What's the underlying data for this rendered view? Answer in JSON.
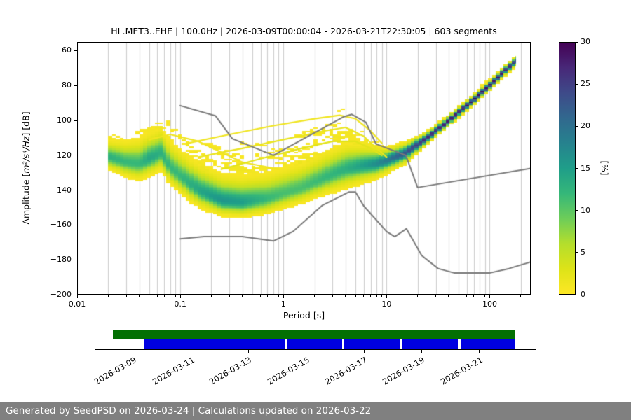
{
  "chart_data": {
    "type": "heatmap",
    "title": "HL.MET3..EHE | 100.0Hz | 2026-03-09T00:00:04 - 2026-03-21T22:30:05 | 603 segments",
    "xlabel": "Period [s]",
    "ylabel": "Amplitude [m²/s⁴/Hz] [dB]",
    "ylabel_prefix": "Amplitude [",
    "ylabel_math": "m²/s⁴/Hz",
    "ylabel_suffix": "] [dB]",
    "xscale": "log",
    "xlim": [
      0.01,
      250
    ],
    "ylim": [
      -200,
      -55
    ],
    "grid": true,
    "grid_color": "#cccccc",
    "xticks": {
      "values": [
        0.01,
        0.1,
        1,
        10,
        100
      ],
      "labels": [
        "0.01",
        "0.1",
        "1",
        "10",
        "100"
      ]
    },
    "yticks": {
      "values": [
        -60,
        -80,
        -100,
        -120,
        -140,
        -160,
        -180,
        -200
      ],
      "labels": [
        "−60",
        "−80",
        "−100",
        "−120",
        "−140",
        "−160",
        "−180",
        "−200"
      ]
    },
    "colorbar": {
      "label": "[%]",
      "min": 0,
      "max": 30,
      "ticks": [
        0,
        5,
        10,
        15,
        20,
        25,
        30
      ],
      "colormap": "viridis_r",
      "stops": [
        [
          0,
          "#440154"
        ],
        [
          0.1,
          "#482878"
        ],
        [
          0.2,
          "#3e4a89"
        ],
        [
          0.3,
          "#31688e"
        ],
        [
          0.4,
          "#26828e"
        ],
        [
          0.5,
          "#1f9e89"
        ],
        [
          0.6,
          "#35b779"
        ],
        [
          0.7,
          "#6dcd59"
        ],
        [
          0.8,
          "#b4de2c"
        ],
        [
          0.9,
          "#dde318"
        ],
        [
          1,
          "#fde725"
        ]
      ]
    },
    "ppsd": {
      "period_range": [
        0.02,
        179
      ],
      "period_bin_decades": 0.0376,
      "db_bin": 1,
      "display_threshold": 0.4,
      "tail_amp": 3,
      "control_periods": [
        0.02,
        0.03,
        0.04,
        0.05,
        0.065,
        0.08,
        0.1,
        0.15,
        0.25,
        0.4,
        0.7,
        1,
        1.5,
        2.5,
        4,
        6,
        8,
        10,
        15,
        25,
        40,
        70,
        100,
        150,
        179
      ],
      "mode_db": [
        -121,
        -124,
        -125,
        -122,
        -119,
        -127,
        -132,
        -140,
        -146,
        -147,
        -145,
        -142,
        -139,
        -133,
        -128,
        -126,
        -125,
        -123,
        -119,
        -110,
        -100,
        -88,
        -80,
        -70,
        -66
      ],
      "sigma_down": [
        3,
        3.5,
        4,
        4,
        4,
        4,
        4,
        4,
        3.5,
        3.5,
        3.5,
        3.5,
        3.5,
        4,
        4.5,
        4,
        3.5,
        3,
        2.5,
        1.5,
        1.3,
        1.2,
        1.2,
        1.2,
        1.2
      ],
      "sigma_up": [
        4,
        5,
        6,
        6,
        6,
        6,
        6,
        6,
        6,
        6,
        6,
        6,
        6,
        6,
        6,
        5,
        4,
        3,
        2.5,
        1.5,
        1.3,
        1.2,
        1.2,
        1.2,
        1.2
      ],
      "peak_percent": [
        13,
        12,
        12,
        14,
        13,
        12,
        12,
        14,
        16,
        15,
        12,
        11,
        11,
        12,
        13,
        15,
        17,
        19,
        23,
        27,
        28,
        29,
        29,
        28,
        26
      ],
      "tail_len_db": [
        8,
        9,
        10,
        12,
        13,
        14,
        15,
        16,
        17,
        17,
        17,
        17,
        18,
        19,
        17,
        12,
        8,
        5,
        2.5,
        2,
        2,
        2,
        2,
        2,
        2
      ],
      "wisp_curves": [
        {
          "percent": 1.2,
          "points": [
            [
              0.12,
              -113
            ],
            [
              0.3,
              -108
            ],
            [
              0.8,
              -103
            ],
            [
              2,
              -99
            ],
            [
              3.5,
              -97
            ],
            [
              5,
              -99
            ],
            [
              7,
              -106
            ],
            [
              9,
              -113
            ]
          ]
        },
        {
          "percent": 1.8,
          "points": [
            [
              0.15,
              -121
            ],
            [
              0.4,
              -116
            ],
            [
              1,
              -111
            ],
            [
              2.5,
              -106
            ],
            [
              4,
              -104
            ],
            [
              6,
              -109
            ],
            [
              8,
              -116
            ],
            [
              10,
              -121
            ]
          ]
        },
        {
          "percent": 1.2,
          "points": [
            [
              0.05,
              -111
            ],
            [
              0.08,
              -108
            ],
            [
              0.15,
              -112
            ],
            [
              0.4,
              -124
            ],
            [
              0.9,
              -128
            ]
          ]
        },
        {
          "percent": 2.5,
          "points": [
            [
              0.25,
              -128
            ],
            [
              0.6,
              -122
            ],
            [
              1.5,
              -116
            ],
            [
              3,
              -112
            ],
            [
              5,
              -112
            ],
            [
              7,
              -116
            ],
            [
              9,
              -120
            ]
          ]
        }
      ]
    },
    "noise_models": {
      "color": "#7a7a7a",
      "nhnm": [
        [
          0.1,
          -91.5
        ],
        [
          0.22,
          -97.4
        ],
        [
          0.32,
          -110.5
        ],
        [
          0.8,
          -120.0
        ],
        [
          3.8,
          -98.0
        ],
        [
          4.6,
          -96.5
        ],
        [
          6.3,
          -101.0
        ],
        [
          7.9,
          -113.5
        ],
        [
          15.4,
          -120.0
        ],
        [
          20.0,
          -138.5
        ],
        [
          354.0,
          -126.0
        ]
      ],
      "nlnm": [
        [
          0.1,
          -168.0
        ],
        [
          0.17,
          -166.7
        ],
        [
          0.4,
          -166.7
        ],
        [
          0.8,
          -169.2
        ],
        [
          1.24,
          -163.7
        ],
        [
          2.4,
          -148.6
        ],
        [
          4.3,
          -141.1
        ],
        [
          5.0,
          -141.1
        ],
        [
          6.0,
          -149.0
        ],
        [
          10.0,
          -163.7
        ],
        [
          12.0,
          -166.7
        ],
        [
          15.6,
          -162.1
        ],
        [
          21.9,
          -177.5
        ],
        [
          31.6,
          -185.0
        ],
        [
          45.0,
          -187.5
        ],
        [
          101.0,
          -187.5
        ],
        [
          154.0,
          -185.0
        ],
        [
          328.0,
          -179.1
        ]
      ]
    }
  },
  "timeline": {
    "colors": {
      "green": "#037003",
      "blue": "#0000e0"
    },
    "green_segments": [
      [
        0.04,
        0.953
      ]
    ],
    "blue_segments": [
      [
        0.111,
        0.431
      ],
      [
        0.436,
        0.561
      ],
      [
        0.566,
        0.693
      ],
      [
        0.698,
        0.824
      ],
      [
        0.829,
        0.953
      ]
    ],
    "tick_positions": [
      0.087,
      0.218,
      0.348,
      0.479,
      0.61,
      0.74,
      0.871
    ],
    "tick_labels": [
      "2026-03-09",
      "2026-03-11",
      "2026-03-13",
      "2026-03-15",
      "2026-03-17",
      "2026-03-19",
      "2026-03-21"
    ]
  },
  "footer": {
    "text": "Generated by SeedPSD on 2026-03-24 | Calculations updated on 2026-03-22"
  }
}
